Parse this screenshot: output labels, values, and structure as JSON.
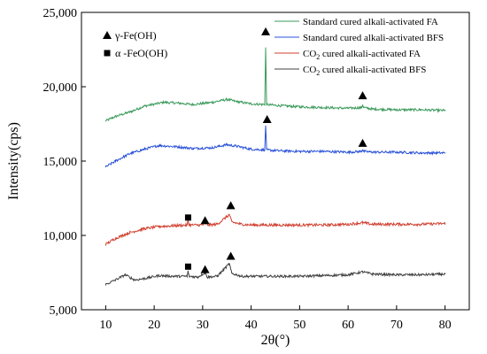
{
  "chart_data": {
    "type": "line",
    "title": "",
    "xlabel": "2θ(°)",
    "ylabel": "Intensity(cps)",
    "xlim": [
      5,
      85
    ],
    "ylim": [
      5000,
      25000
    ],
    "x_ticks": [
      10,
      20,
      30,
      40,
      50,
      60,
      70,
      80
    ],
    "x_tick_labels": [
      "10",
      "20",
      "30",
      "40",
      "50",
      "60",
      "70",
      "80"
    ],
    "y_ticks": [
      5000,
      10000,
      15000,
      20000,
      25000
    ],
    "y_tick_labels": [
      "5,000",
      "10,000",
      "15,000",
      "20,000",
      "25,000"
    ],
    "grid": false,
    "legend": {
      "placement": "top-right",
      "entries": [
        {
          "text": "Standard cured alkali-activated FA",
          "color": "#3a9a5b"
        },
        {
          "text": "Standard cured alkali-activated BFS",
          "color": "#2850d8"
        },
        {
          "prefix": "CO",
          "sub": "2",
          "suffix": " cured alkali-activated FA",
          "color": "#d04030"
        },
        {
          "prefix": "CO",
          "sub": "2",
          "suffix": " cured alkali-activated BFS",
          "color": "#404040"
        }
      ]
    },
    "marker_legend": [
      {
        "symbol": "triangle",
        "text": "γ-Fe(OH)"
      },
      {
        "symbol": "square",
        "text": "α -FeO(OH)"
      }
    ],
    "series": [
      {
        "name": "Standard cured alkali-activated FA",
        "color": "#3a9a5b",
        "noise": 80,
        "points": [
          [
            10,
            17700
          ],
          [
            12,
            18000
          ],
          [
            15,
            18300
          ],
          [
            18,
            18700
          ],
          [
            22,
            18950
          ],
          [
            25,
            18900
          ],
          [
            28,
            18800
          ],
          [
            32,
            18950
          ],
          [
            35,
            19150
          ],
          [
            37,
            19000
          ],
          [
            40,
            18850
          ],
          [
            42.8,
            18800
          ],
          [
            43.0,
            22600
          ],
          [
            43.2,
            18800
          ],
          [
            45,
            18750
          ],
          [
            50,
            18650
          ],
          [
            55,
            18600
          ],
          [
            60,
            18550
          ],
          [
            62.8,
            18600
          ],
          [
            63.0,
            18800
          ],
          [
            63.2,
            18600
          ],
          [
            65,
            18500
          ],
          [
            70,
            18450
          ],
          [
            75,
            18450
          ],
          [
            80,
            18400
          ]
        ]
      },
      {
        "name": "Standard cured alkali-activated BFS",
        "color": "#2850d8",
        "noise": 80,
        "points": [
          [
            10,
            14600
          ],
          [
            12,
            15000
          ],
          [
            15,
            15500
          ],
          [
            18,
            15800
          ],
          [
            21,
            16050
          ],
          [
            25,
            15950
          ],
          [
            28,
            15850
          ],
          [
            32,
            15900
          ],
          [
            35,
            16100
          ],
          [
            37,
            16000
          ],
          [
            40,
            15800
          ],
          [
            42.8,
            15750
          ],
          [
            43.0,
            17400
          ],
          [
            43.2,
            15750
          ],
          [
            45,
            15700
          ],
          [
            50,
            15650
          ],
          [
            55,
            15650
          ],
          [
            60,
            15600
          ],
          [
            62.8,
            15650
          ],
          [
            63.0,
            15800
          ],
          [
            63.2,
            15650
          ],
          [
            65,
            15600
          ],
          [
            70,
            15600
          ],
          [
            75,
            15550
          ],
          [
            80,
            15550
          ]
        ]
      },
      {
        "name": "CO2 cured alkali-activated FA",
        "color": "#d04030",
        "noise": 90,
        "points": [
          [
            10,
            9400
          ],
          [
            12,
            9800
          ],
          [
            15,
            10200
          ],
          [
            18,
            10450
          ],
          [
            21,
            10600
          ],
          [
            24,
            10650
          ],
          [
            26.8,
            10700
          ],
          [
            27.0,
            11000
          ],
          [
            27.2,
            10700
          ],
          [
            30,
            10700
          ],
          [
            30.5,
            10850
          ],
          [
            31,
            10700
          ],
          [
            33,
            10750
          ],
          [
            35.5,
            11400
          ],
          [
            36,
            10900
          ],
          [
            38,
            10750
          ],
          [
            40,
            10700
          ],
          [
            45,
            10700
          ],
          [
            50,
            10700
          ],
          [
            55,
            10700
          ],
          [
            60,
            10750
          ],
          [
            63,
            10850
          ],
          [
            65,
            10750
          ],
          [
            70,
            10750
          ],
          [
            75,
            10750
          ],
          [
            80,
            10800
          ]
        ]
      },
      {
        "name": "CO2 cured alkali-activated BFS",
        "color": "#404040",
        "noise": 80,
        "points": [
          [
            10,
            6700
          ],
          [
            12,
            7000
          ],
          [
            14,
            7350
          ],
          [
            16,
            7000
          ],
          [
            18,
            7100
          ],
          [
            21,
            7300
          ],
          [
            24,
            7250
          ],
          [
            26.8,
            7250
          ],
          [
            27.0,
            7600
          ],
          [
            27.2,
            7250
          ],
          [
            29,
            7200
          ],
          [
            30.5,
            7500
          ],
          [
            31,
            7200
          ],
          [
            33,
            7250
          ],
          [
            35.5,
            8100
          ],
          [
            36,
            7450
          ],
          [
            38,
            7250
          ],
          [
            40,
            7250
          ],
          [
            45,
            7250
          ],
          [
            50,
            7250
          ],
          [
            55,
            7300
          ],
          [
            60,
            7350
          ],
          [
            63,
            7550
          ],
          [
            65,
            7400
          ],
          [
            70,
            7350
          ],
          [
            75,
            7350
          ],
          [
            80,
            7400
          ]
        ]
      }
    ],
    "annotations": [
      {
        "symbol": "triangle",
        "x": 43.0,
        "y": 23700
      },
      {
        "symbol": "triangle",
        "x": 63.0,
        "y": 19400
      },
      {
        "symbol": "triangle",
        "x": 43.3,
        "y": 17800
      },
      {
        "symbol": "triangle",
        "x": 63.0,
        "y": 16200
      },
      {
        "symbol": "square",
        "x": 27.0,
        "y": 11200
      },
      {
        "symbol": "triangle",
        "x": 30.5,
        "y": 11000
      },
      {
        "symbol": "triangle",
        "x": 35.8,
        "y": 12000
      },
      {
        "symbol": "square",
        "x": 27.0,
        "y": 7900
      },
      {
        "symbol": "triangle",
        "x": 30.5,
        "y": 7700
      },
      {
        "symbol": "triangle",
        "x": 35.8,
        "y": 8600
      }
    ]
  }
}
